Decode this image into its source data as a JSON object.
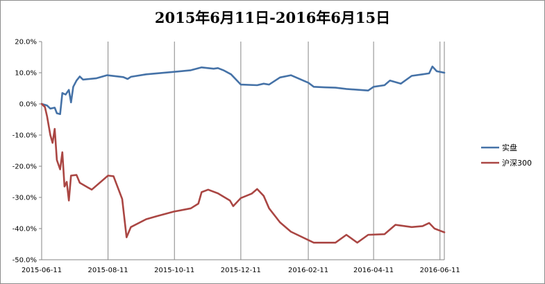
{
  "chart_data": {
    "type": "line",
    "title": "2015年6月11日-2016年6月15日",
    "xlabel": "",
    "ylabel": "",
    "x_ticks": [
      "2015-06-11",
      "2015-08-11",
      "2015-10-11",
      "2015-12-11",
      "2016-02-11",
      "2016-04-11",
      "2016-06-11"
    ],
    "x_range": [
      "2015-06-11",
      "2016-06-15"
    ],
    "y_ticks": [
      "20.0%",
      "10.0%",
      "0.0%",
      "-10.0%",
      "-20.0%",
      "-30.0%",
      "-40.0%",
      "-50.0%"
    ],
    "ylim": [
      -50,
      20
    ],
    "grid": "vertical-only",
    "legend_position": "right",
    "series": [
      {
        "name": "实盘",
        "color": "#4572A7",
        "points": [
          [
            "2015-06-11",
            0
          ],
          [
            "2015-06-16",
            -0.5
          ],
          [
            "2015-06-19",
            -1.5
          ],
          [
            "2015-06-23",
            -1.2
          ],
          [
            "2015-06-25",
            -3
          ],
          [
            "2015-06-28",
            -3.3
          ],
          [
            "2015-06-30",
            3.5
          ],
          [
            "2015-07-03",
            3
          ],
          [
            "2015-07-06",
            4.5
          ],
          [
            "2015-07-08",
            0.5
          ],
          [
            "2015-07-10",
            5.5
          ],
          [
            "2015-07-13",
            7.5
          ],
          [
            "2015-07-16",
            8.8
          ],
          [
            "2015-07-19",
            7.8
          ],
          [
            "2015-07-31",
            8.2
          ],
          [
            "2015-08-10",
            9.2
          ],
          [
            "2015-08-25",
            8.6
          ],
          [
            "2015-08-29",
            8
          ],
          [
            "2015-09-01",
            8.7
          ],
          [
            "2015-09-15",
            9.5
          ],
          [
            "2015-10-11",
            10.3
          ],
          [
            "2015-10-26",
            10.8
          ],
          [
            "2015-11-05",
            11.7
          ],
          [
            "2015-11-16",
            11.3
          ],
          [
            "2015-11-20",
            11.5
          ],
          [
            "2015-11-25",
            10.8
          ],
          [
            "2015-12-02",
            9.5
          ],
          [
            "2015-12-11",
            6.2
          ],
          [
            "2015-12-26",
            6
          ],
          [
            "2016-01-01",
            6.5
          ],
          [
            "2016-01-06",
            6.2
          ],
          [
            "2016-01-16",
            8.5
          ],
          [
            "2016-01-26",
            9.2
          ],
          [
            "2016-02-11",
            6.8
          ],
          [
            "2016-02-16",
            5.5
          ],
          [
            "2016-02-26",
            5.3
          ],
          [
            "2016-03-07",
            5.2
          ],
          [
            "2016-03-17",
            4.8
          ],
          [
            "2016-04-06",
            4.3
          ],
          [
            "2016-04-11",
            5.5
          ],
          [
            "2016-04-21",
            6
          ],
          [
            "2016-04-26",
            7.5
          ],
          [
            "2016-05-06",
            6.5
          ],
          [
            "2016-05-16",
            9
          ],
          [
            "2016-05-26",
            9.5
          ],
          [
            "2016-06-01",
            9.8
          ],
          [
            "2016-06-04",
            12
          ],
          [
            "2016-06-08",
            10.5
          ],
          [
            "2016-06-15",
            10
          ]
        ]
      },
      {
        "name": "沪深300",
        "color": "#AA4643",
        "points": [
          [
            "2015-06-11",
            0
          ],
          [
            "2015-06-14",
            -1
          ],
          [
            "2015-06-16",
            -4
          ],
          [
            "2015-06-19",
            -10
          ],
          [
            "2015-06-21",
            -12.5
          ],
          [
            "2015-06-23",
            -8
          ],
          [
            "2015-06-25",
            -18
          ],
          [
            "2015-06-28",
            -21
          ],
          [
            "2015-06-30",
            -15.5
          ],
          [
            "2015-07-02",
            -26.5
          ],
          [
            "2015-07-04",
            -25
          ],
          [
            "2015-07-06",
            -31
          ],
          [
            "2015-07-08",
            -23
          ],
          [
            "2015-07-13",
            -22.8
          ],
          [
            "2015-07-16",
            -25.3
          ],
          [
            "2015-07-27",
            -27.5
          ],
          [
            "2015-08-11",
            -23
          ],
          [
            "2015-08-16",
            -23.2
          ],
          [
            "2015-08-24",
            -30.5
          ],
          [
            "2015-08-28",
            -42.8
          ],
          [
            "2015-09-01",
            -39.5
          ],
          [
            "2015-09-15",
            -37
          ],
          [
            "2015-09-25",
            -36
          ],
          [
            "2015-10-11",
            -34.5
          ],
          [
            "2015-10-26",
            -33.5
          ],
          [
            "2015-11-02",
            -32
          ],
          [
            "2015-11-05",
            -28.3
          ],
          [
            "2015-11-11",
            -27.5
          ],
          [
            "2015-11-20",
            -28.7
          ],
          [
            "2015-12-01",
            -31
          ],
          [
            "2015-12-04",
            -32.8
          ],
          [
            "2015-12-11",
            -30.2
          ],
          [
            "2015-12-21",
            -28.8
          ],
          [
            "2015-12-26",
            -27.3
          ],
          [
            "2016-01-01",
            -29.5
          ],
          [
            "2016-01-06",
            -33.5
          ],
          [
            "2016-01-16",
            -38
          ],
          [
            "2016-01-26",
            -41
          ],
          [
            "2016-02-16",
            -44.5
          ],
          [
            "2016-03-07",
            -44.5
          ],
          [
            "2016-03-17",
            -42
          ],
          [
            "2016-03-27",
            -44.5
          ],
          [
            "2016-04-06",
            -42
          ],
          [
            "2016-04-21",
            -41.8
          ],
          [
            "2016-05-01",
            -38.8
          ],
          [
            "2016-05-16",
            -39.5
          ],
          [
            "2016-05-26",
            -39.2
          ],
          [
            "2016-06-01",
            -38.2
          ],
          [
            "2016-06-06",
            -40
          ],
          [
            "2016-06-15",
            -41.2
          ]
        ]
      }
    ]
  }
}
